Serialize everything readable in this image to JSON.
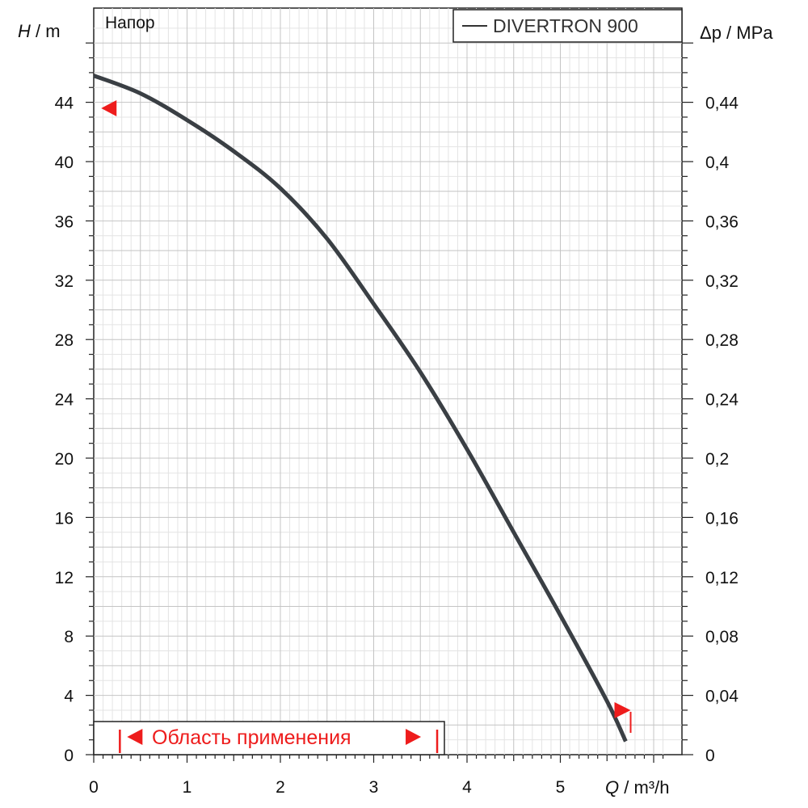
{
  "chart_data": {
    "type": "line",
    "title": "Напор",
    "xlabel": {
      "var": "Q",
      "unit": " / m³/h"
    },
    "ylabel": {
      "var": "H",
      "unit": " / m"
    },
    "y2label": {
      "var": "Δp",
      "unit": " / MPa"
    },
    "xlim": [
      0,
      6.2
    ],
    "ylim": [
      0,
      49
    ],
    "x_ticks": [
      0,
      1,
      2,
      3,
      4,
      5
    ],
    "x_tick_labels": [
      "0",
      "1",
      "2",
      "3",
      "4",
      "5"
    ],
    "y_ticks": [
      0,
      4,
      8,
      12,
      16,
      20,
      24,
      28,
      32,
      36,
      40,
      44
    ],
    "y_tick_labels": [
      "0",
      "4",
      "8",
      "12",
      "16",
      "20",
      "24",
      "28",
      "32",
      "36",
      "40",
      "44"
    ],
    "y2_ticks": [
      0,
      0.04,
      0.08,
      0.12,
      0.16,
      0.2,
      0.24,
      0.28,
      0.32,
      0.36,
      0.4,
      0.44
    ],
    "y2_tick_labels": [
      "0",
      "0,04",
      "0,08",
      "0,12",
      "0,16",
      "0,2",
      "0,24",
      "0,28",
      "0,32",
      "0,36",
      "0,4",
      "0,44"
    ],
    "grid": true,
    "legend": {
      "position": "top-right",
      "label": "DIVERTRON 900"
    },
    "series": [
      {
        "name": "DIVERTRON 900",
        "color": "#3a3f44",
        "x": [
          0,
          0.5,
          1.0,
          1.5,
          2.0,
          2.5,
          3.0,
          3.5,
          4.0,
          4.5,
          5.0,
          5.5,
          5.7
        ],
        "y": [
          45.8,
          44.6,
          42.8,
          40.7,
          38.2,
          34.8,
          30.4,
          25.8,
          20.6,
          15.0,
          9.4,
          3.6,
          0.9
        ]
      }
    ],
    "markers": [
      {
        "type": "max-head",
        "x": 0.08,
        "y": 43.6,
        "direction": "left",
        "color": "#ee1c1c"
      },
      {
        "type": "max-flow",
        "x": 5.58,
        "y": 3.0,
        "direction": "right",
        "color": "#ee1c1c"
      }
    ],
    "application_range": {
      "label": "Область применения",
      "x_min": 0.28,
      "x_max": 3.68,
      "color": "#ee1c1c"
    }
  }
}
